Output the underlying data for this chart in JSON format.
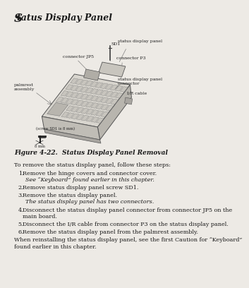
{
  "bg_color": "#edeae5",
  "title_S": "S",
  "title_rest": "tatus Display Panel",
  "figure_caption": "Figure 4-22.  Status Display Panel Removal",
  "intro": "To remove the status display panel, follow these steps:",
  "steps": [
    {
      "num": "1.",
      "text": "Remove the hinge covers and connector cover.",
      "sub": "See “Keyboard” found earlier in this chapter."
    },
    {
      "num": "2.",
      "text": "Remove status display panel screw SD1.",
      "sub": null
    },
    {
      "num": "3.",
      "text": "Remove the status display panel.",
      "sub": "The status display panel has two connectors."
    },
    {
      "num": "4.",
      "text": "Disconnect the status display panel connector from connector JP5 on the",
      "text2": "main board.",
      "sub": null
    },
    {
      "num": "5.",
      "text": "Disconnect the I/R cable from connector P3 on the status display panel.",
      "sub": null
    },
    {
      "num": "6.",
      "text": "Remove the status display panel from the palmrest assembly.",
      "sub": null
    }
  ],
  "closing1": "When reinstalling the status display panel, see the first Caution for “Keyboard”",
  "closing2": "found earlier in this chapter.",
  "text_color": "#1a1a1a",
  "label_color": "#222222",
  "key_fill": "#cccccc",
  "key_edge": "#888888",
  "body_fill": "#d4d0c8",
  "body_edge": "#555555",
  "body_side": "#b0aca4",
  "sdp_fill": "#c8c4bc",
  "jp5_fill": "#b8b4ac"
}
